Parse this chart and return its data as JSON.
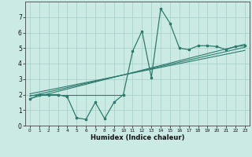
{
  "xlabel": "Humidex (Indice chaleur)",
  "bg_color": "#cceae4",
  "grid_color": "#aad4cc",
  "line_color": "#2e7b6e",
  "xlim": [
    -0.5,
    23.5
  ],
  "ylim": [
    0,
    8
  ],
  "yticks": [
    0,
    1,
    2,
    3,
    4,
    5,
    6,
    7
  ],
  "xticks": [
    0,
    1,
    2,
    3,
    4,
    5,
    6,
    7,
    8,
    9,
    10,
    11,
    12,
    13,
    14,
    15,
    16,
    17,
    18,
    19,
    20,
    21,
    22,
    23
  ],
  "zigzag_x": [
    0,
    1,
    2,
    3,
    4,
    5,
    6,
    7,
    8,
    9,
    10,
    11,
    12,
    13,
    14,
    15,
    16,
    17,
    18,
    19,
    20,
    21,
    22,
    23
  ],
  "zigzag_y": [
    1.7,
    2.0,
    2.0,
    2.0,
    1.85,
    0.5,
    0.4,
    1.5,
    0.45,
    1.5,
    2.0,
    4.8,
    6.1,
    3.1,
    7.55,
    6.6,
    5.0,
    4.9,
    5.15,
    5.15,
    5.1,
    4.9,
    5.1,
    5.15
  ],
  "trend1_x": [
    0,
    23
  ],
  "trend1_y": [
    1.75,
    5.25
  ],
  "trend2_x": [
    0,
    23
  ],
  "trend2_y": [
    2.05,
    4.85
  ],
  "trend3_x": [
    0,
    23
  ],
  "trend3_y": [
    1.9,
    5.05
  ],
  "trend4_x": [
    0,
    10
  ],
  "trend4_y": [
    2.0,
    2.0
  ]
}
